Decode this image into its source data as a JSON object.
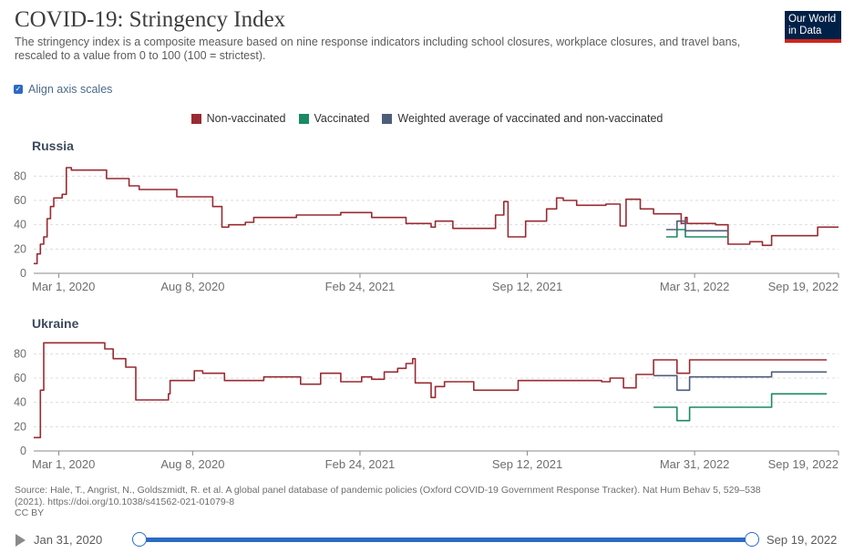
{
  "header": {
    "title": "COVID-19: Stringency Index",
    "subtitle": "The stringency index is a composite measure based on nine response indicators including school closures, workplace closures, and travel bans, rescaled to a value from 0 to 100 (100 = strictest).",
    "logo_line1": "Our World",
    "logo_line2": "in Data"
  },
  "controls": {
    "align_axis_label": "Align axis scales",
    "align_axis_checked": true
  },
  "legend": [
    {
      "label": "Non-vaccinated",
      "color": "#9a2a32"
    },
    {
      "label": "Vaccinated",
      "color": "#1a8a64"
    },
    {
      "label": "Weighted average of vaccinated and non-vaccinated",
      "color": "#4e5d7a"
    }
  ],
  "colors": {
    "non_vaccinated": "#9a2a32",
    "vaccinated": "#1a8a64",
    "weighted": "#4e5d7a",
    "accent": "#2c6bc4"
  },
  "chart_data": [
    {
      "type": "line",
      "title": "Russia",
      "x_tick_labels": [
        "Mar 1, 2020",
        "Aug 8, 2020",
        "Feb 24, 2021",
        "Sep 12, 2021",
        "Mar 31, 2022",
        "Sep 19, 2022"
      ],
      "x_tick_dates": [
        "2020-03-01",
        "2020-08-08",
        "2021-02-24",
        "2021-09-12",
        "2022-03-31",
        "2022-09-19"
      ],
      "y_ticks": [
        0,
        20,
        40,
        60,
        80
      ],
      "ylim": [
        0,
        90
      ],
      "xlim": [
        "2020-01-31",
        "2022-09-19"
      ],
      "grid": true,
      "series": [
        {
          "name": "Non-vaccinated",
          "color_key": "non_vaccinated",
          "points": [
            [
              "2020-01-31",
              8
            ],
            [
              "2020-02-04",
              16
            ],
            [
              "2020-02-08",
              24
            ],
            [
              "2020-02-12",
              30
            ],
            [
              "2020-02-16",
              45
            ],
            [
              "2020-02-20",
              55
            ],
            [
              "2020-02-24",
              62
            ],
            [
              "2020-03-05",
              65
            ],
            [
              "2020-03-10",
              87
            ],
            [
              "2020-03-16",
              85
            ],
            [
              "2020-04-27",
              78
            ],
            [
              "2020-05-24",
              72
            ],
            [
              "2020-06-05",
              69
            ],
            [
              "2020-07-20",
              63
            ],
            [
              "2020-09-01",
              55
            ],
            [
              "2020-09-12",
              38
            ],
            [
              "2020-09-20",
              40
            ],
            [
              "2020-10-10",
              42
            ],
            [
              "2020-10-20",
              46
            ],
            [
              "2020-12-10",
              48
            ],
            [
              "2021-02-01",
              50
            ],
            [
              "2021-03-10",
              46
            ],
            [
              "2021-04-20",
              41
            ],
            [
              "2021-05-20",
              38
            ],
            [
              "2021-05-25",
              43
            ],
            [
              "2021-06-15",
              37
            ],
            [
              "2021-08-05",
              48
            ],
            [
              "2021-08-15",
              59
            ],
            [
              "2021-08-20",
              30
            ],
            [
              "2021-09-10",
              43
            ],
            [
              "2021-10-05",
              53
            ],
            [
              "2021-10-17",
              62
            ],
            [
              "2021-10-25",
              60
            ],
            [
              "2021-11-10",
              56
            ],
            [
              "2021-12-15",
              57
            ],
            [
              "2022-01-01",
              39
            ],
            [
              "2022-01-08",
              61
            ],
            [
              "2022-01-25",
              53
            ],
            [
              "2022-02-10",
              49
            ],
            [
              "2022-03-15",
              41
            ],
            [
              "2022-03-20",
              46
            ],
            [
              "2022-03-22",
              41
            ],
            [
              "2022-04-25",
              40
            ],
            [
              "2022-05-10",
              24
            ],
            [
              "2022-06-05",
              26
            ],
            [
              "2022-06-20",
              23
            ],
            [
              "2022-07-01",
              31
            ],
            [
              "2022-08-25",
              38
            ],
            [
              "2022-09-19",
              38
            ]
          ]
        },
        {
          "name": "Vaccinated",
          "color_key": "vaccinated",
          "points": [
            [
              "2022-02-25",
              30
            ],
            [
              "2022-03-10",
              36
            ],
            [
              "2022-03-20",
              30
            ],
            [
              "2022-05-10",
              30
            ]
          ]
        },
        {
          "name": "Weighted average of vaccinated and non-vaccinated",
          "color_key": "weighted",
          "points": [
            [
              "2022-02-25",
              36
            ],
            [
              "2022-03-10",
              43
            ],
            [
              "2022-03-20",
              35
            ],
            [
              "2022-05-10",
              35
            ]
          ]
        }
      ]
    },
    {
      "type": "line",
      "title": "Ukraine",
      "x_tick_labels": [
        "Mar 1, 2020",
        "Aug 8, 2020",
        "Feb 24, 2021",
        "Sep 12, 2021",
        "Mar 31, 2022",
        "Sep 19, 2022"
      ],
      "x_tick_dates": [
        "2020-03-01",
        "2020-08-08",
        "2021-02-24",
        "2021-09-12",
        "2022-03-31",
        "2022-09-19"
      ],
      "y_ticks": [
        0,
        20,
        40,
        60,
        80
      ],
      "ylim": [
        0,
        90
      ],
      "xlim": [
        "2020-01-31",
        "2022-09-19"
      ],
      "grid": true,
      "series": [
        {
          "name": "Non-vaccinated",
          "color_key": "non_vaccinated",
          "points": [
            [
              "2020-01-31",
              11
            ],
            [
              "2020-02-08",
              50
            ],
            [
              "2020-02-12",
              89
            ],
            [
              "2020-04-25",
              84
            ],
            [
              "2020-05-05",
              76
            ],
            [
              "2020-05-20",
              69
            ],
            [
              "2020-06-01",
              42
            ],
            [
              "2020-07-10",
              47
            ],
            [
              "2020-07-12",
              58
            ],
            [
              "2020-08-10",
              66
            ],
            [
              "2020-08-20",
              64
            ],
            [
              "2020-09-15",
              58
            ],
            [
              "2020-11-01",
              61
            ],
            [
              "2020-12-15",
              55
            ],
            [
              "2021-01-08",
              64
            ],
            [
              "2021-02-01",
              57
            ],
            [
              "2021-02-26",
              61
            ],
            [
              "2021-03-10",
              59
            ],
            [
              "2021-03-25",
              65
            ],
            [
              "2021-04-10",
              68
            ],
            [
              "2021-04-20",
              72
            ],
            [
              "2021-04-28",
              76
            ],
            [
              "2021-05-01",
              56
            ],
            [
              "2021-05-20",
              44
            ],
            [
              "2021-05-25",
              53
            ],
            [
              "2021-06-05",
              57
            ],
            [
              "2021-07-10",
              50
            ],
            [
              "2021-09-01",
              58
            ],
            [
              "2021-12-10",
              57
            ],
            [
              "2021-12-20",
              60
            ],
            [
              "2022-01-05",
              52
            ],
            [
              "2022-01-20",
              63
            ],
            [
              "2022-02-10",
              75
            ],
            [
              "2022-03-10",
              64
            ],
            [
              "2022-03-25",
              75
            ],
            [
              "2022-09-05",
              75
            ]
          ]
        },
        {
          "name": "Vaccinated",
          "color_key": "vaccinated",
          "points": [
            [
              "2022-02-10",
              36
            ],
            [
              "2022-03-10",
              25
            ],
            [
              "2022-03-25",
              36
            ],
            [
              "2022-07-01",
              47
            ],
            [
              "2022-09-05",
              47
            ]
          ]
        },
        {
          "name": "Weighted average of vaccinated and non-vaccinated",
          "color_key": "weighted",
          "points": [
            [
              "2022-02-10",
              62
            ],
            [
              "2022-03-10",
              50
            ],
            [
              "2022-03-25",
              61
            ],
            [
              "2022-07-01",
              65
            ],
            [
              "2022-09-05",
              65
            ]
          ]
        }
      ]
    }
  ],
  "footer": {
    "source_line1": "Source: Hale, T., Angrist, N., Goldszmidt, R. et al. A global panel database of pandemic policies (Oxford COVID-19 Government Response Tracker). Nat Hum Behav 5, 529–538",
    "source_line2": "(2021). https://doi.org/10.1038/s41562-021-01079-8",
    "license": "CC BY"
  },
  "timeline": {
    "start_label": "Jan 31, 2020",
    "end_label": "Sep 19, 2022",
    "selected_start_fraction": 0.0,
    "selected_end_fraction": 1.0
  }
}
